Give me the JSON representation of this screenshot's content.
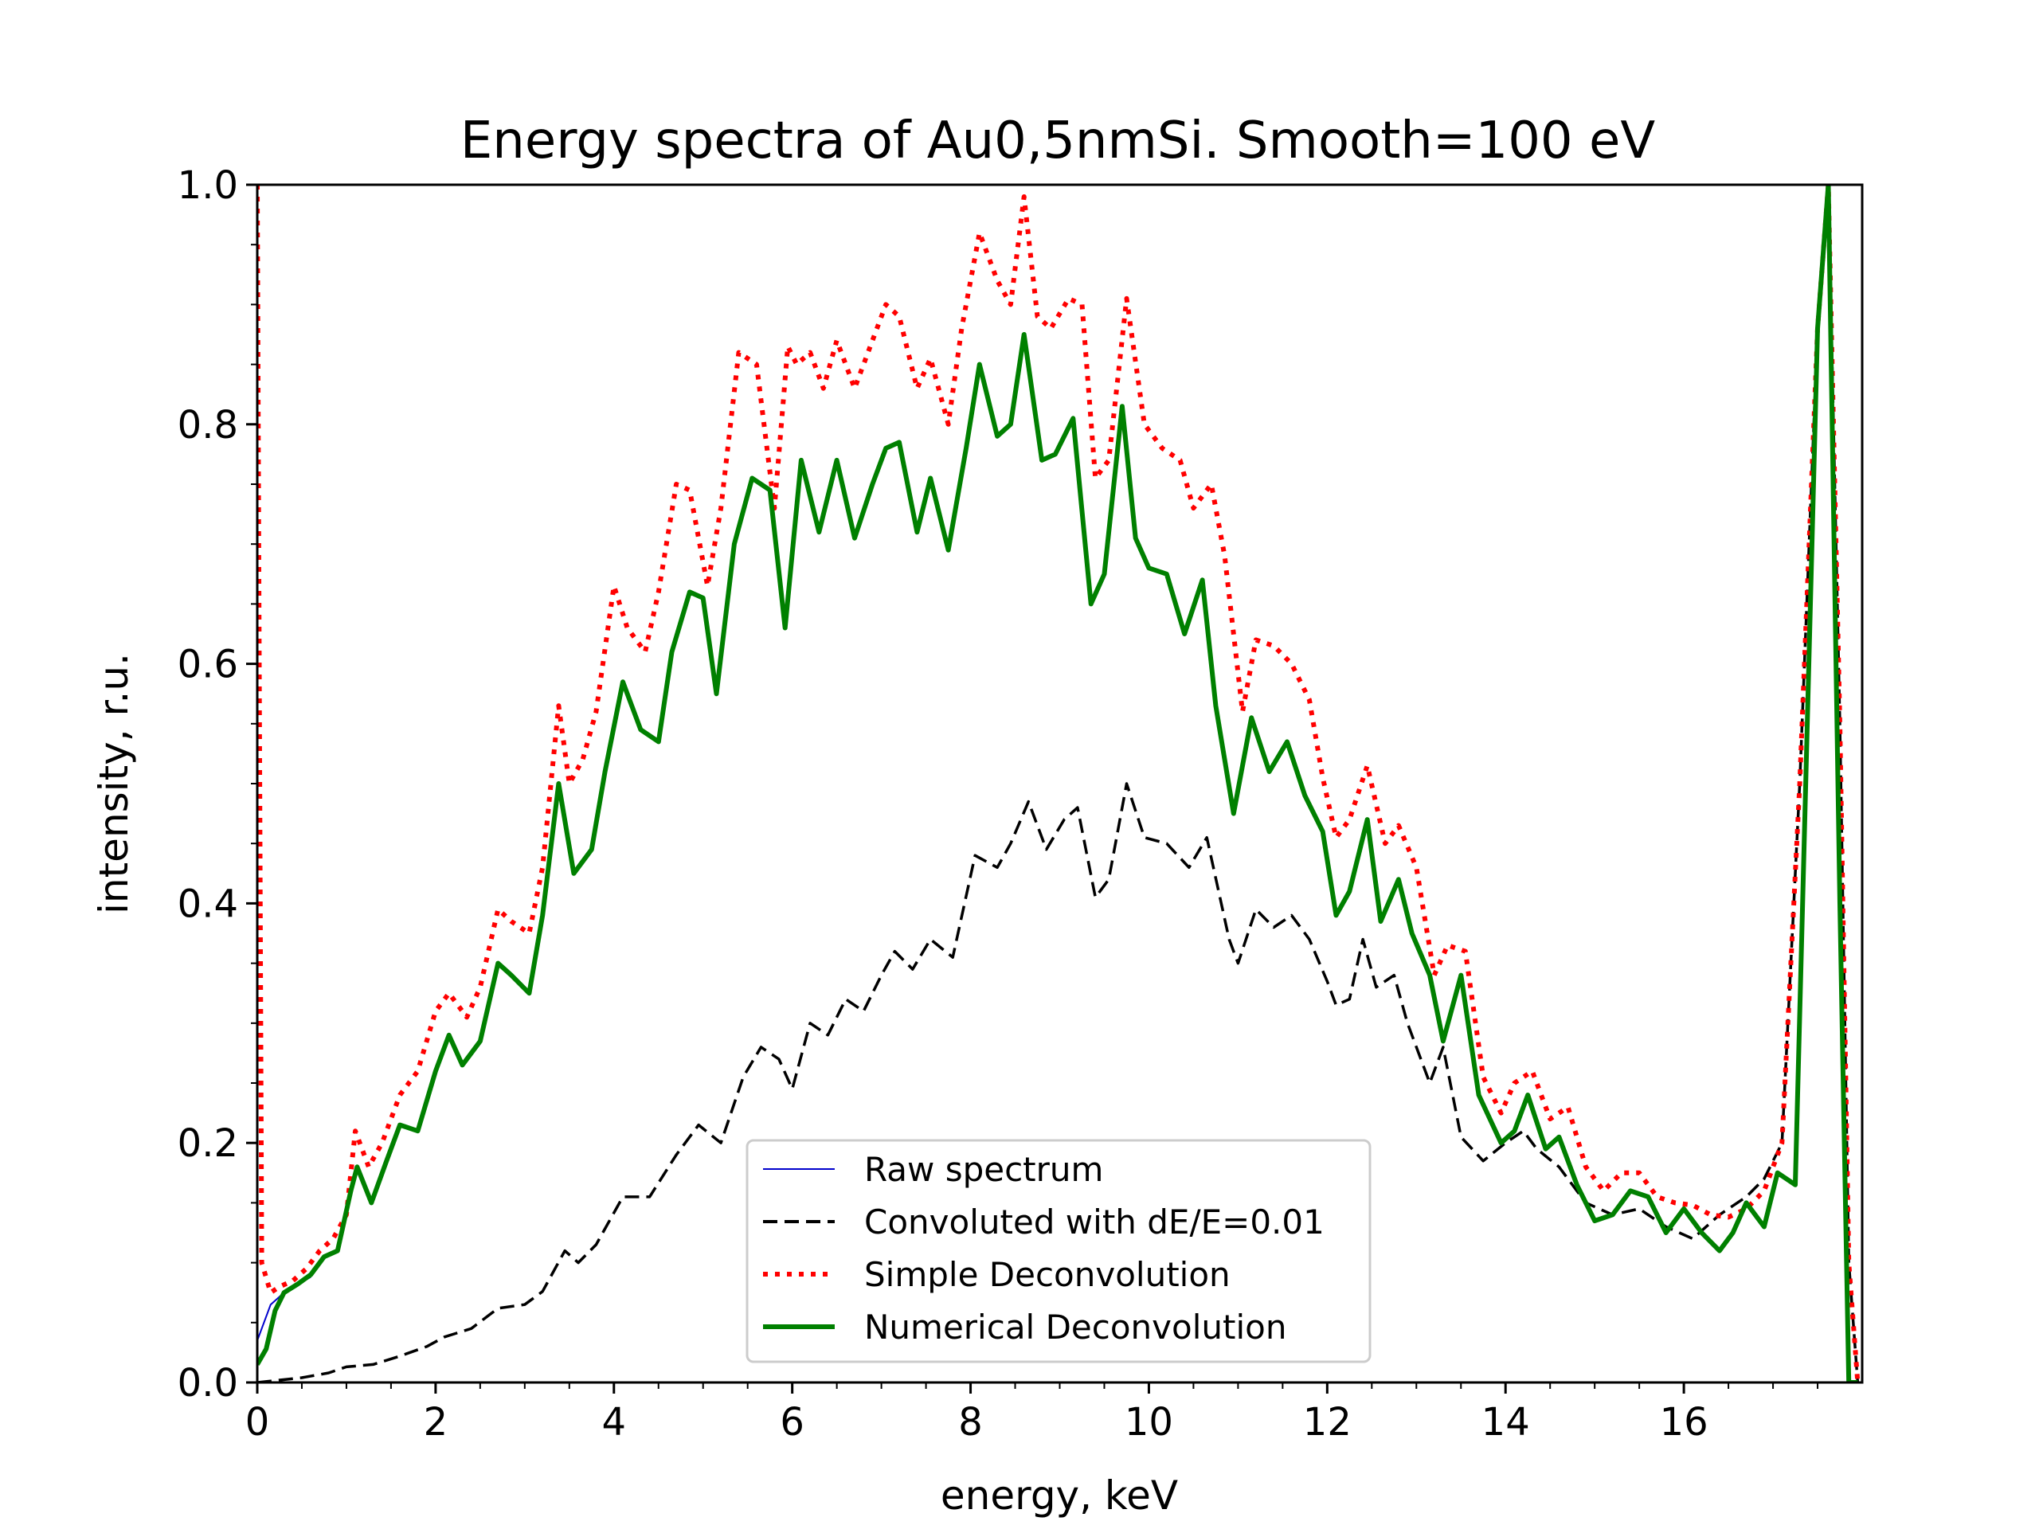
{
  "chart_data": {
    "type": "line",
    "title": "Energy spectra of Au0,5nmSi. Smooth=100 eV",
    "xlabel": "energy, keV",
    "ylabel": "intensity, r.u.",
    "xlim": [
      0,
      18.0
    ],
    "ylim": [
      0,
      1.0
    ],
    "xticks": [
      "0",
      "2",
      "4",
      "6",
      "8",
      "10",
      "12",
      "14",
      "16"
    ],
    "yticks": [
      "0.0",
      "0.2",
      "0.4",
      "0.6",
      "0.8",
      "1.0"
    ],
    "grid": false,
    "legend_position": "lower-center",
    "series": [
      {
        "name": "Raw spectrum",
        "color": "#0000cc",
        "style": "solid",
        "x": [
          0,
          0.15,
          0.3,
          0.45,
          0.6
        ],
        "y": [
          0.035,
          0.065,
          0.075,
          0.082,
          0.088
        ]
      },
      {
        "name": "Convoluted with dE/E=0.01",
        "color": "#000000",
        "style": "dashed",
        "x": [
          0,
          0.5,
          0.8,
          1.0,
          1.3,
          1.6,
          1.9,
          2.1,
          2.4,
          2.7,
          3.0,
          3.2,
          3.45,
          3.6,
          3.8,
          4.1,
          4.4,
          4.7,
          4.95,
          5.2,
          5.45,
          5.65,
          5.85,
          6.0,
          6.2,
          6.4,
          6.6,
          6.8,
          7.0,
          7.15,
          7.35,
          7.55,
          7.8,
          8.05,
          8.3,
          8.45,
          8.65,
          8.85,
          9.05,
          9.2,
          9.4,
          9.55,
          9.75,
          9.95,
          10.2,
          10.45,
          10.65,
          10.9,
          11.0,
          11.2,
          11.4,
          11.6,
          11.8,
          12.0,
          12.1,
          12.25,
          12.4,
          12.55,
          12.75,
          12.9,
          13.15,
          13.3,
          13.5,
          13.75,
          14.0,
          14.2,
          14.35,
          14.6,
          14.9,
          15.2,
          15.5,
          15.8,
          16.1,
          16.4,
          16.7,
          16.9,
          17.1,
          17.3,
          17.5,
          17.62,
          17.75,
          17.85,
          17.95
        ],
        "y": [
          0.0,
          0.004,
          0.008,
          0.013,
          0.015,
          0.022,
          0.03,
          0.038,
          0.045,
          0.062,
          0.065,
          0.076,
          0.11,
          0.1,
          0.115,
          0.155,
          0.155,
          0.19,
          0.215,
          0.2,
          0.255,
          0.28,
          0.27,
          0.245,
          0.3,
          0.29,
          0.32,
          0.31,
          0.34,
          0.36,
          0.345,
          0.37,
          0.355,
          0.44,
          0.43,
          0.45,
          0.485,
          0.445,
          0.47,
          0.48,
          0.405,
          0.42,
          0.5,
          0.455,
          0.45,
          0.43,
          0.455,
          0.37,
          0.35,
          0.395,
          0.38,
          0.39,
          0.37,
          0.335,
          0.315,
          0.32,
          0.37,
          0.33,
          0.34,
          0.3,
          0.25,
          0.28,
          0.205,
          0.185,
          0.2,
          0.21,
          0.195,
          0.18,
          0.15,
          0.14,
          0.145,
          0.13,
          0.12,
          0.14,
          0.155,
          0.17,
          0.2,
          0.5,
          0.88,
          1.0,
          0.55,
          0.1,
          0.0
        ]
      },
      {
        "name": "Simple Deconvolution",
        "color": "#ff0000",
        "style": "dotted",
        "x": [
          0,
          0.05,
          0.15,
          0.25,
          0.4,
          0.55,
          0.7,
          0.85,
          1.0,
          1.1,
          1.25,
          1.4,
          1.6,
          1.8,
          2.0,
          2.15,
          2.35,
          2.5,
          2.7,
          2.85,
          3.05,
          3.2,
          3.38,
          3.5,
          3.65,
          3.8,
          4.0,
          4.15,
          4.35,
          4.5,
          4.7,
          4.85,
          5.05,
          5.2,
          5.4,
          5.6,
          5.8,
          5.95,
          6.05,
          6.2,
          6.35,
          6.5,
          6.7,
          6.85,
          7.05,
          7.2,
          7.4,
          7.55,
          7.75,
          7.9,
          8.1,
          8.3,
          8.45,
          8.6,
          8.75,
          8.9,
          9.1,
          9.25,
          9.4,
          9.55,
          9.75,
          9.95,
          10.15,
          10.35,
          10.5,
          10.7,
          10.85,
          11.05,
          11.2,
          11.4,
          11.6,
          11.8,
          11.95,
          12.1,
          12.25,
          12.45,
          12.65,
          12.8,
          13.0,
          13.2,
          13.35,
          13.55,
          13.75,
          13.95,
          14.1,
          14.3,
          14.5,
          14.7,
          14.9,
          15.1,
          15.3,
          15.5,
          15.7,
          15.9,
          16.1,
          16.3,
          16.5,
          16.7,
          16.9,
          17.1,
          17.3,
          17.5,
          17.62,
          17.75,
          17.85,
          17.95
        ],
        "y": [
          1.0,
          0.1,
          0.075,
          0.08,
          0.085,
          0.095,
          0.11,
          0.12,
          0.14,
          0.21,
          0.18,
          0.2,
          0.24,
          0.26,
          0.31,
          0.325,
          0.305,
          0.33,
          0.395,
          0.385,
          0.375,
          0.43,
          0.565,
          0.5,
          0.52,
          0.56,
          0.665,
          0.63,
          0.61,
          0.66,
          0.75,
          0.745,
          0.665,
          0.73,
          0.86,
          0.85,
          0.73,
          0.865,
          0.85,
          0.86,
          0.83,
          0.87,
          0.83,
          0.86,
          0.9,
          0.89,
          0.83,
          0.855,
          0.8,
          0.88,
          0.96,
          0.92,
          0.9,
          0.99,
          0.89,
          0.88,
          0.905,
          0.9,
          0.755,
          0.77,
          0.905,
          0.8,
          0.78,
          0.77,
          0.73,
          0.75,
          0.69,
          0.56,
          0.62,
          0.615,
          0.6,
          0.57,
          0.505,
          0.455,
          0.47,
          0.515,
          0.45,
          0.465,
          0.43,
          0.34,
          0.365,
          0.36,
          0.255,
          0.225,
          0.25,
          0.26,
          0.22,
          0.23,
          0.18,
          0.16,
          0.175,
          0.175,
          0.155,
          0.15,
          0.148,
          0.14,
          0.138,
          0.145,
          0.16,
          0.2,
          0.5,
          0.88,
          1.0,
          0.55,
          0.1,
          0.0
        ]
      },
      {
        "name": "Numerical Deconvolution",
        "color": "#008000",
        "style": "solid",
        "x": [
          0,
          0.1,
          0.2,
          0.3,
          0.45,
          0.6,
          0.75,
          0.9,
          1.05,
          1.12,
          1.28,
          1.45,
          1.6,
          1.8,
          2.0,
          2.15,
          2.3,
          2.5,
          2.7,
          2.85,
          3.05,
          3.2,
          3.38,
          3.55,
          3.75,
          3.9,
          4.1,
          4.3,
          4.5,
          4.65,
          4.85,
          5.0,
          5.15,
          5.35,
          5.55,
          5.75,
          5.92,
          6.1,
          6.3,
          6.5,
          6.7,
          6.9,
          7.05,
          7.2,
          7.4,
          7.55,
          7.75,
          7.95,
          8.1,
          8.3,
          8.45,
          8.6,
          8.8,
          8.95,
          9.15,
          9.35,
          9.5,
          9.7,
          9.85,
          10.0,
          10.2,
          10.4,
          10.6,
          10.75,
          10.95,
          11.15,
          11.35,
          11.55,
          11.75,
          11.95,
          12.1,
          12.25,
          12.45,
          12.6,
          12.8,
          12.95,
          13.15,
          13.3,
          13.5,
          13.7,
          13.95,
          14.1,
          14.25,
          14.45,
          14.6,
          14.8,
          15.0,
          15.2,
          15.4,
          15.6,
          15.8,
          16.0,
          16.2,
          16.4,
          16.55,
          16.7,
          16.9,
          17.05,
          17.25,
          17.5,
          17.62,
          17.75,
          17.85,
          17.95
        ],
        "y": [
          0.015,
          0.028,
          0.06,
          0.075,
          0.082,
          0.09,
          0.105,
          0.11,
          0.16,
          0.18,
          0.15,
          0.185,
          0.215,
          0.21,
          0.26,
          0.29,
          0.265,
          0.285,
          0.35,
          0.34,
          0.325,
          0.39,
          0.5,
          0.425,
          0.445,
          0.51,
          0.585,
          0.545,
          0.535,
          0.61,
          0.66,
          0.655,
          0.575,
          0.7,
          0.755,
          0.745,
          0.63,
          0.77,
          0.71,
          0.77,
          0.705,
          0.75,
          0.78,
          0.785,
          0.71,
          0.755,
          0.695,
          0.78,
          0.85,
          0.79,
          0.8,
          0.875,
          0.77,
          0.775,
          0.805,
          0.65,
          0.675,
          0.815,
          0.705,
          0.68,
          0.675,
          0.625,
          0.67,
          0.565,
          0.475,
          0.555,
          0.51,
          0.535,
          0.49,
          0.46,
          0.39,
          0.41,
          0.47,
          0.385,
          0.42,
          0.375,
          0.34,
          0.285,
          0.34,
          0.24,
          0.2,
          0.21,
          0.24,
          0.195,
          0.205,
          0.165,
          0.135,
          0.14,
          0.16,
          0.155,
          0.125,
          0.145,
          0.125,
          0.11,
          0.125,
          0.15,
          0.13,
          0.175,
          0.165,
          0.88,
          1.0,
          0.4,
          0.0,
          0.0
        ]
      }
    ]
  }
}
